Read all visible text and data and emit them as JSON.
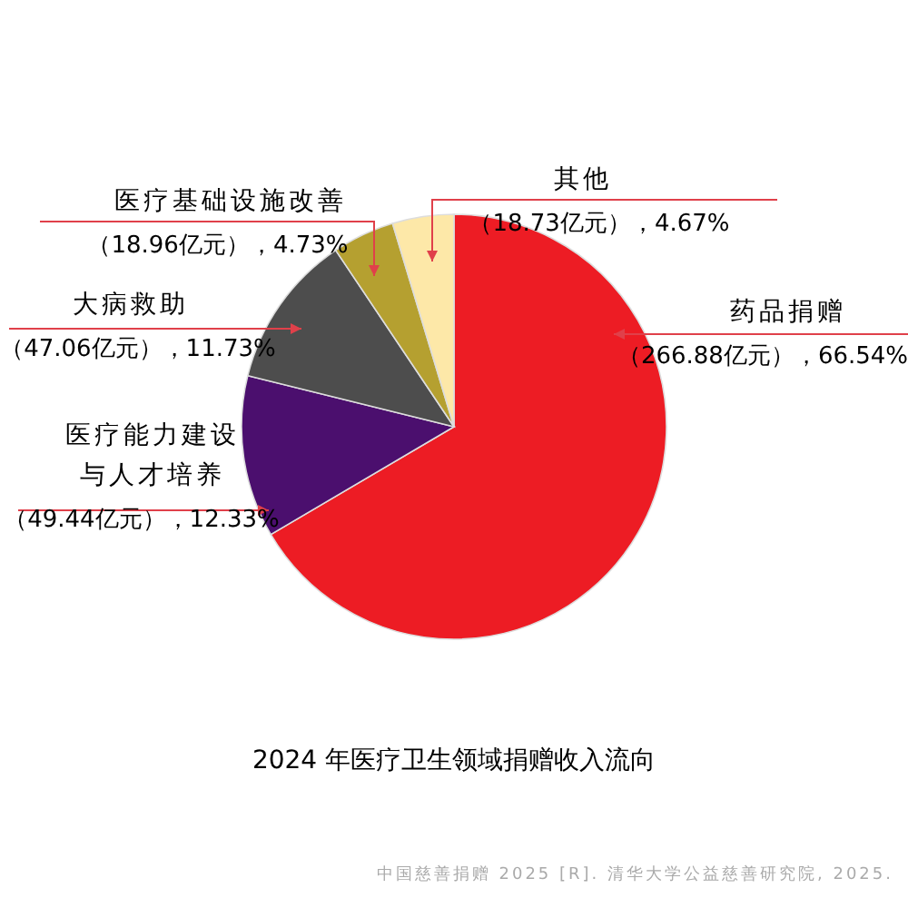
{
  "chart_data": {
    "type": "pie",
    "title": "2024 年医疗卫生领域捐赠收入流向",
    "categories": [
      "药品捐赠",
      "医疗能力建设与人才培养",
      "大病救助",
      "医疗基础设施改善",
      "其他"
    ],
    "values": [
      266.88,
      49.44,
      47.06,
      18.96,
      18.73
    ],
    "value_labels": [
      "（266.88亿元），66.54%",
      "（49.44亿元），12.33%",
      "（47.06亿元），11.73%",
      "（18.96亿元），4.73%",
      "（18.73亿元），4.67%"
    ],
    "colors": [
      "#ed1c24",
      "#4b0f6e",
      "#4d4d4d",
      "#b5a030",
      "#fde8a8"
    ],
    "annotations": [
      "中国慈善捐赠 2025 [R]. 清华大学公益慈善研究院, 2025."
    ]
  }
}
